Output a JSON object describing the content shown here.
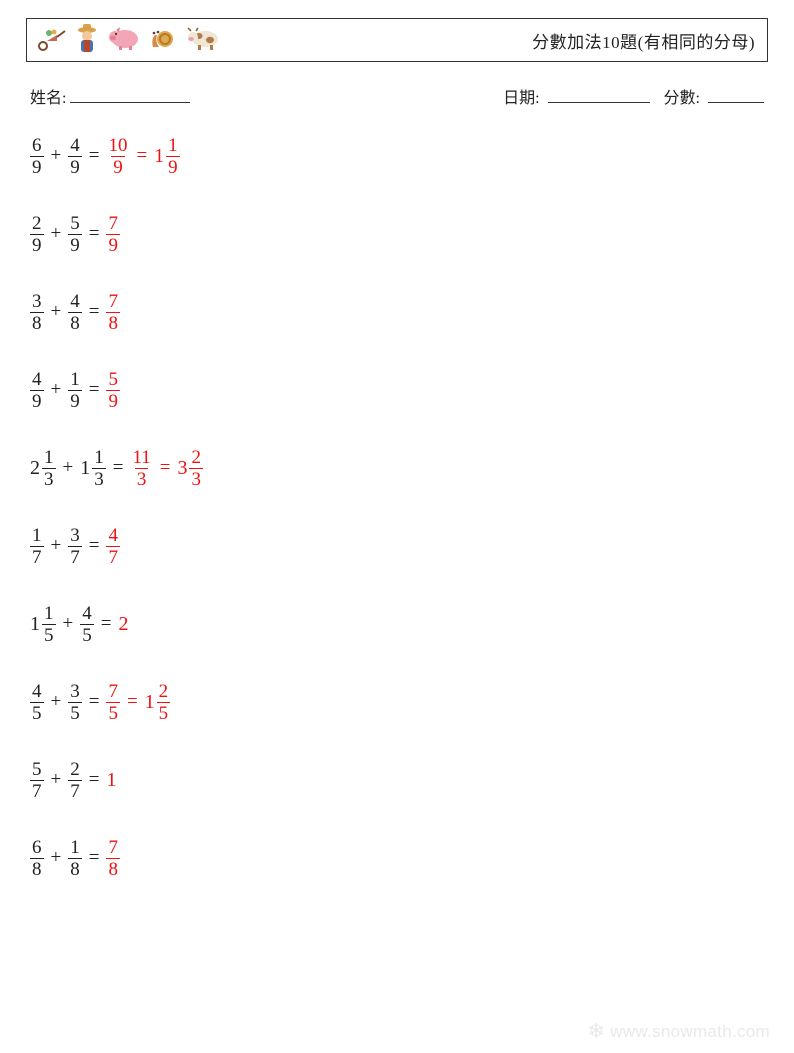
{
  "header": {
    "title": "分數加法10題(有相同的分母)",
    "icons": [
      {
        "name": "wheelbarrow-icon"
      },
      {
        "name": "farmer-icon"
      },
      {
        "name": "pig-icon"
      },
      {
        "name": "snail-icon"
      },
      {
        "name": "cow-icon"
      }
    ]
  },
  "info": {
    "name_label": "姓名:",
    "date_label": "日期:",
    "score_label": "分數:"
  },
  "colors": {
    "text": "#222222",
    "answer": "#ee1111",
    "border": "#333333",
    "background": "#ffffff",
    "watermark": "#e9e9e9"
  },
  "problems": [
    {
      "a": {
        "whole": null,
        "num": "6",
        "den": "9"
      },
      "b": {
        "whole": null,
        "num": "4",
        "den": "9"
      },
      "answers": [
        {
          "whole": null,
          "num": "10",
          "den": "9"
        },
        {
          "whole": "1",
          "num": "1",
          "den": "9"
        }
      ]
    },
    {
      "a": {
        "whole": null,
        "num": "2",
        "den": "9"
      },
      "b": {
        "whole": null,
        "num": "5",
        "den": "9"
      },
      "answers": [
        {
          "whole": null,
          "num": "7",
          "den": "9"
        }
      ]
    },
    {
      "a": {
        "whole": null,
        "num": "3",
        "den": "8"
      },
      "b": {
        "whole": null,
        "num": "4",
        "den": "8"
      },
      "answers": [
        {
          "whole": null,
          "num": "7",
          "den": "8"
        }
      ]
    },
    {
      "a": {
        "whole": null,
        "num": "4",
        "den": "9"
      },
      "b": {
        "whole": null,
        "num": "1",
        "den": "9"
      },
      "answers": [
        {
          "whole": null,
          "num": "5",
          "den": "9"
        }
      ]
    },
    {
      "a": {
        "whole": "2",
        "num": "1",
        "den": "3"
      },
      "b": {
        "whole": "1",
        "num": "1",
        "den": "3"
      },
      "answers": [
        {
          "whole": null,
          "num": "11",
          "den": "3"
        },
        {
          "whole": "3",
          "num": "2",
          "den": "3"
        }
      ]
    },
    {
      "a": {
        "whole": null,
        "num": "1",
        "den": "7"
      },
      "b": {
        "whole": null,
        "num": "3",
        "den": "7"
      },
      "answers": [
        {
          "whole": null,
          "num": "4",
          "den": "7"
        }
      ]
    },
    {
      "a": {
        "whole": "1",
        "num": "1",
        "den": "5"
      },
      "b": {
        "whole": null,
        "num": "4",
        "den": "5"
      },
      "answers": [
        {
          "int": "2"
        }
      ]
    },
    {
      "a": {
        "whole": null,
        "num": "4",
        "den": "5"
      },
      "b": {
        "whole": null,
        "num": "3",
        "den": "5"
      },
      "answers": [
        {
          "whole": null,
          "num": "7",
          "den": "5"
        },
        {
          "whole": "1",
          "num": "2",
          "den": "5"
        }
      ]
    },
    {
      "a": {
        "whole": null,
        "num": "5",
        "den": "7"
      },
      "b": {
        "whole": null,
        "num": "2",
        "den": "7"
      },
      "answers": [
        {
          "int": "1"
        }
      ]
    },
    {
      "a": {
        "whole": null,
        "num": "6",
        "den": "8"
      },
      "b": {
        "whole": null,
        "num": "1",
        "den": "8"
      },
      "answers": [
        {
          "whole": null,
          "num": "7",
          "den": "8"
        }
      ]
    }
  ],
  "watermark": "www.snowmath.com",
  "watermark_prefix_glyph": "❄"
}
